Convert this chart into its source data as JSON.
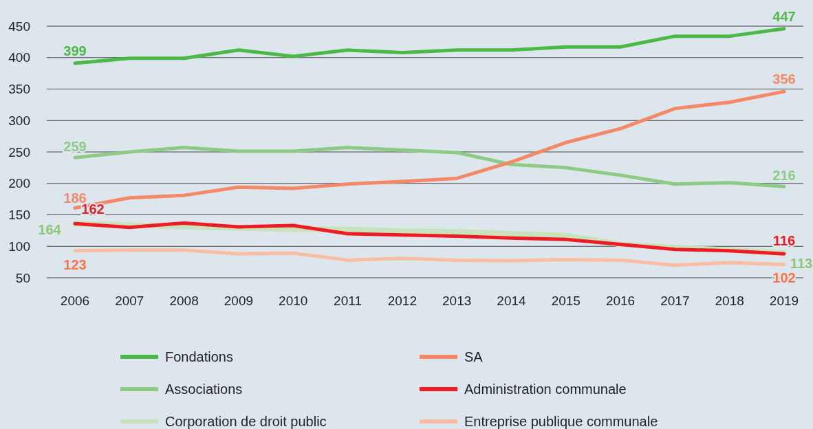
{
  "chart_data": {
    "type": "line",
    "categories": [
      "2006",
      "2007",
      "2008",
      "2009",
      "2010",
      "2011",
      "2012",
      "2013",
      "2014",
      "2015",
      "2016",
      "2017",
      "2018",
      "2019"
    ],
    "ylim": [
      50,
      450
    ],
    "yticks": [
      50,
      100,
      150,
      200,
      250,
      300,
      350,
      400,
      450
    ],
    "grid": "y",
    "legend": "bottom",
    "annotations": [
      "399",
      "447",
      "186",
      "356",
      "259",
      "216",
      "162",
      "116",
      "164",
      "113",
      "123",
      "102"
    ],
    "series": [
      {
        "name": "Fondations",
        "color": "#4cb848",
        "values": [
          391,
          399,
          399,
          412,
          402,
          412,
          408,
          412,
          412,
          417,
          417,
          434,
          434,
          446
        ]
      },
      {
        "name": "SA",
        "color": "#f58866",
        "values": [
          161,
          177,
          181,
          194,
          192,
          199,
          203,
          208,
          234,
          265,
          287,
          319,
          329,
          346
        ]
      },
      {
        "name": "Associations",
        "color": "#8dcb84",
        "values": [
          241,
          250,
          257,
          251,
          251,
          257,
          253,
          249,
          230,
          225,
          213,
          199,
          201,
          195
        ]
      },
      {
        "name": "Administration communale",
        "color": "#ed1c24",
        "values": [
          136,
          130,
          137,
          131,
          133,
          120,
          118,
          116,
          113,
          111,
          103,
          95,
          93,
          88
        ]
      },
      {
        "name": "Corporation de droit public",
        "color": "#c8e3bc",
        "values": [
          136,
          134,
          131,
          129,
          127,
          127,
          124,
          123,
          120,
          117,
          103,
          98,
          94,
          90
        ]
      },
      {
        "name": "Entreprise publique communale",
        "color": "#fbbca4",
        "values": [
          93,
          94,
          94,
          88,
          89,
          78,
          81,
          78,
          77,
          79,
          78,
          70,
          74,
          71
        ]
      }
    ]
  }
}
